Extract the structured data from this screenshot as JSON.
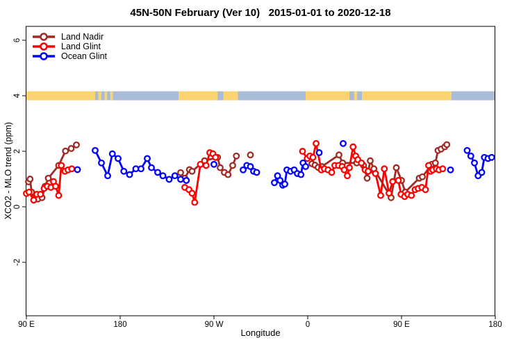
{
  "title": "45N-50N February (Ver 10)   2015-01-01 to 2020-12-18",
  "chart_data": {
    "type": "scatter",
    "title": "45N-50N February (Ver 10)   2015-01-01 to 2020-12-18",
    "xlabel": "Longitude",
    "ylabel": "XCO2 - MLO trend (ppm)",
    "x_axis": {
      "range_deg_east": [
        90,
        540
      ],
      "ticks": [
        {
          "value": 90,
          "label": "90 E"
        },
        {
          "value": 180,
          "label": "180"
        },
        {
          "value": 270,
          "label": "90 W"
        },
        {
          "value": 360,
          "label": "0"
        },
        {
          "value": 450,
          "label": "90 E"
        },
        {
          "value": 540,
          "label": "180"
        }
      ]
    },
    "y_axis": {
      "range": [
        -3.9,
        6.5
      ],
      "ticks": [
        {
          "value": 6,
          "label": "6"
        },
        {
          "value": 4,
          "label": "4"
        },
        {
          "value": 2,
          "label": "2"
        },
        {
          "value": 0,
          "label": "0"
        },
        {
          "value": -2,
          "label": "-2"
        }
      ]
    },
    "land_strip": {
      "y_value": 4,
      "ocean_color": "#a8bcd8",
      "land_color": "#fbd371",
      "land_segments_deg": [
        [
          90,
          156
        ],
        [
          159,
          162
        ],
        [
          165,
          167.5
        ],
        [
          170.5,
          173
        ],
        [
          236,
          273.5
        ],
        [
          279,
          293
        ],
        [
          358,
          400
        ],
        [
          404.5,
          407.5
        ],
        [
          412,
          498
        ]
      ]
    },
    "legend_position": "top-left",
    "series": [
      {
        "name": "Land Nadir",
        "color": "#9e2b24",
        "segments": [
          [
            [
              92,
              0.9
            ],
            [
              93.5,
              1.0
            ],
            [
              95,
              0.53
            ],
            [
              98,
              0.28
            ],
            [
              101,
              0.28
            ],
            [
              105,
              0.33
            ],
            [
              108,
              0.74
            ],
            [
              111,
              1.03
            ],
            [
              121,
              1.49
            ],
            [
              127.5,
              2.01
            ],
            [
              133,
              2.1
            ],
            [
              138,
              2.23
            ]
          ],
          [
            [
              238,
              1.23
            ],
            [
              242,
              1.03
            ],
            [
              246.5,
              1.34
            ],
            [
              249,
              1.28
            ],
            [
              261,
              1.66
            ],
            [
              273.5,
              1.78
            ],
            [
              276,
              1.41
            ],
            [
              280,
              1.24
            ],
            [
              283.5,
              1.16
            ],
            [
              288,
              1.49
            ],
            [
              291.5,
              1.83
            ]
          ],
          [
            [
              305,
              1.87
            ]
          ],
          [
            [
              364,
              1.55
            ],
            [
              367,
              1.5
            ],
            [
              370,
              1.42
            ],
            [
              373.5,
              1.45
            ],
            [
              390,
              1.87
            ],
            [
              393.5,
              1.58
            ],
            [
              407,
              1.58
            ],
            [
              413.5,
              1.49
            ],
            [
              417,
              1.03
            ],
            [
              420,
              1.66
            ],
            [
              423.5,
              1.37
            ],
            [
              440,
              0.33
            ],
            [
              445,
              1.41
            ],
            [
              450,
              0.95
            ],
            [
              453.5,
              0.53
            ],
            [
              467,
              1.03
            ],
            [
              470,
              1.08
            ],
            [
              479,
              1.53
            ],
            [
              482.5,
              1.58
            ],
            [
              485,
              2.03
            ],
            [
              488,
              2.08
            ],
            [
              491.5,
              2.16
            ],
            [
              493.5,
              2.24
            ]
          ]
        ]
      },
      {
        "name": "Land Glint",
        "color": "#ff0000",
        "segments": [
          [
            [
              90,
              0.48
            ],
            [
              92.5,
              0.53
            ],
            [
              97,
              0.24
            ],
            [
              100,
              0.45
            ],
            [
              103.5,
              0.45
            ],
            [
              107,
              0.66
            ],
            [
              110,
              0.74
            ],
            [
              113.5,
              0.7
            ],
            [
              116,
              0.91
            ],
            [
              118,
              0.74
            ],
            [
              121,
              0.41
            ],
            [
              123.5,
              1.49
            ],
            [
              127,
              1.28
            ],
            [
              130,
              1.33
            ],
            [
              133.5,
              1.37
            ]
          ],
          [
            [
              242,
              0.7
            ],
            [
              246,
              0.62
            ],
            [
              249,
              0.49
            ],
            [
              251.5,
              0.16
            ],
            [
              257,
              1.53
            ],
            [
              262.5,
              1.49
            ],
            [
              266,
              1.95
            ],
            [
              269,
              1.91
            ],
            [
              271.5,
              1.78
            ]
          ],
          [
            [
              355,
              2.0
            ],
            [
              359.5,
              1.74
            ],
            [
              362,
              1.83
            ],
            [
              365,
              1.78
            ],
            [
              368,
              2.28
            ],
            [
              373,
              1.33
            ],
            [
              376,
              1.37
            ],
            [
              379.5,
              1.33
            ],
            [
              383,
              1.24
            ],
            [
              386,
              1.49
            ],
            [
              389.5,
              1.49
            ],
            [
              393,
              1.45
            ],
            [
              395,
              1.33
            ],
            [
              398,
              1.12
            ],
            [
              400,
              1.41
            ],
            [
              403.5,
              2.16
            ],
            [
              406,
              1.83
            ],
            [
              408,
              1.7
            ],
            [
              411.5,
              1.58
            ],
            [
              415,
              1.33
            ],
            [
              418,
              1.28
            ],
            [
              425,
              1.2
            ],
            [
              430,
              0.41
            ],
            [
              433.5,
              1.37
            ],
            [
              438,
              0.49
            ],
            [
              441.5,
              0.91
            ],
            [
              447,
              0.95
            ],
            [
              449.5,
              0.45
            ],
            [
              453,
              0.37
            ],
            [
              456,
              0.45
            ],
            [
              459.5,
              0.41
            ],
            [
              463,
              0.62
            ],
            [
              466,
              0.66
            ],
            [
              469.5,
              0.7
            ],
            [
              473,
              0.62
            ],
            [
              476,
              1.49
            ],
            [
              478,
              1.28
            ],
            [
              480,
              1.33
            ],
            [
              483.5,
              1.37
            ],
            [
              486,
              1.33
            ],
            [
              489.5,
              1.37
            ]
          ]
        ]
      },
      {
        "name": "Ocean Glint",
        "color": "#0000ff",
        "segments": [
          [
            [
              139,
              1.34
            ]
          ],
          [
            [
              156,
              2.03
            ],
            [
              162,
              1.58
            ],
            [
              168,
              1.12
            ],
            [
              172.5,
              1.91
            ],
            [
              178,
              1.74
            ],
            [
              183.5,
              1.28
            ],
            [
              189,
              1.16
            ],
            [
              195,
              1.37
            ],
            [
              200,
              1.37
            ],
            [
              206,
              1.74
            ],
            [
              210,
              1.41
            ],
            [
              216,
              1.24
            ],
            [
              221,
              1.12
            ],
            [
              227,
              0.99
            ],
            [
              232.5,
              1.12
            ],
            [
              238,
              0.99
            ],
            [
              243.5,
              0.95
            ]
          ],
          [
            [
              270,
              1.53
            ]
          ],
          [
            [
              298,
              1.33
            ],
            [
              301.5,
              1.49
            ],
            [
              305,
              1.45
            ],
            [
              308,
              1.28
            ],
            [
              311,
              1.24
            ]
          ],
          [
            [
              328,
              0.87
            ],
            [
              331,
              1.12
            ],
            [
              333.5,
              0.95
            ],
            [
              336,
              0.78
            ],
            [
              338,
              0.82
            ],
            [
              340,
              1.33
            ],
            [
              343.5,
              1.28
            ],
            [
              347,
              1.33
            ],
            [
              350,
              1.2
            ],
            [
              353.5,
              1.16
            ],
            [
              355.5,
              1.58
            ],
            [
              358,
              1.45
            ]
          ],
          [
            [
              371,
              1.95
            ]
          ],
          [
            [
              394,
              2.28
            ]
          ],
          [
            [
              497,
              1.33
            ]
          ],
          [
            [
              513,
              2.03
            ],
            [
              516.5,
              1.83
            ],
            [
              520,
              1.58
            ],
            [
              523.5,
              1.12
            ],
            [
              527,
              1.24
            ],
            [
              529.5,
              1.78
            ],
            [
              533,
              1.74
            ],
            [
              536.5,
              1.78
            ]
          ]
        ]
      }
    ]
  }
}
